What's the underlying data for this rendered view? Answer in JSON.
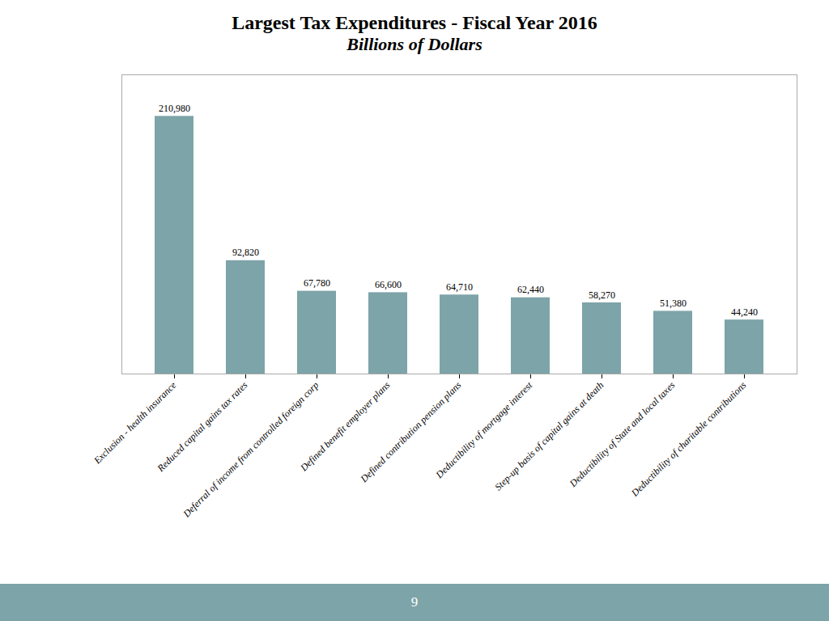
{
  "chart_data": {
    "type": "bar",
    "title": "Largest Tax Expenditures - Fiscal Year 2016",
    "subtitle": "Billions of Dollars",
    "categories": [
      "Exclusion - health insurance",
      "Reduced capital gains tax rates",
      "Deferral of income from controlled foreign corp",
      "Defined benefit employer plans",
      "Defined contribution pension plans",
      "Deductibility of mortgage interest",
      "Step-up basis of capital gains at death",
      "Deductibility of State and local taxes",
      "Deductibility of charitable contributions"
    ],
    "values": [
      210980,
      92820,
      67780,
      66600,
      64710,
      62440,
      58270,
      51380,
      44240
    ],
    "value_labels": [
      "210,980",
      "92,820",
      "67,780",
      "66,600",
      "64,710",
      "62,440",
      "58,270",
      "51,380",
      "44,240"
    ],
    "color": "#7da4a8",
    "ylim": [
      0,
      245000
    ],
    "grid": false,
    "data_labels": true,
    "tick_labels": "x",
    "annotations": [
      "9"
    ]
  }
}
